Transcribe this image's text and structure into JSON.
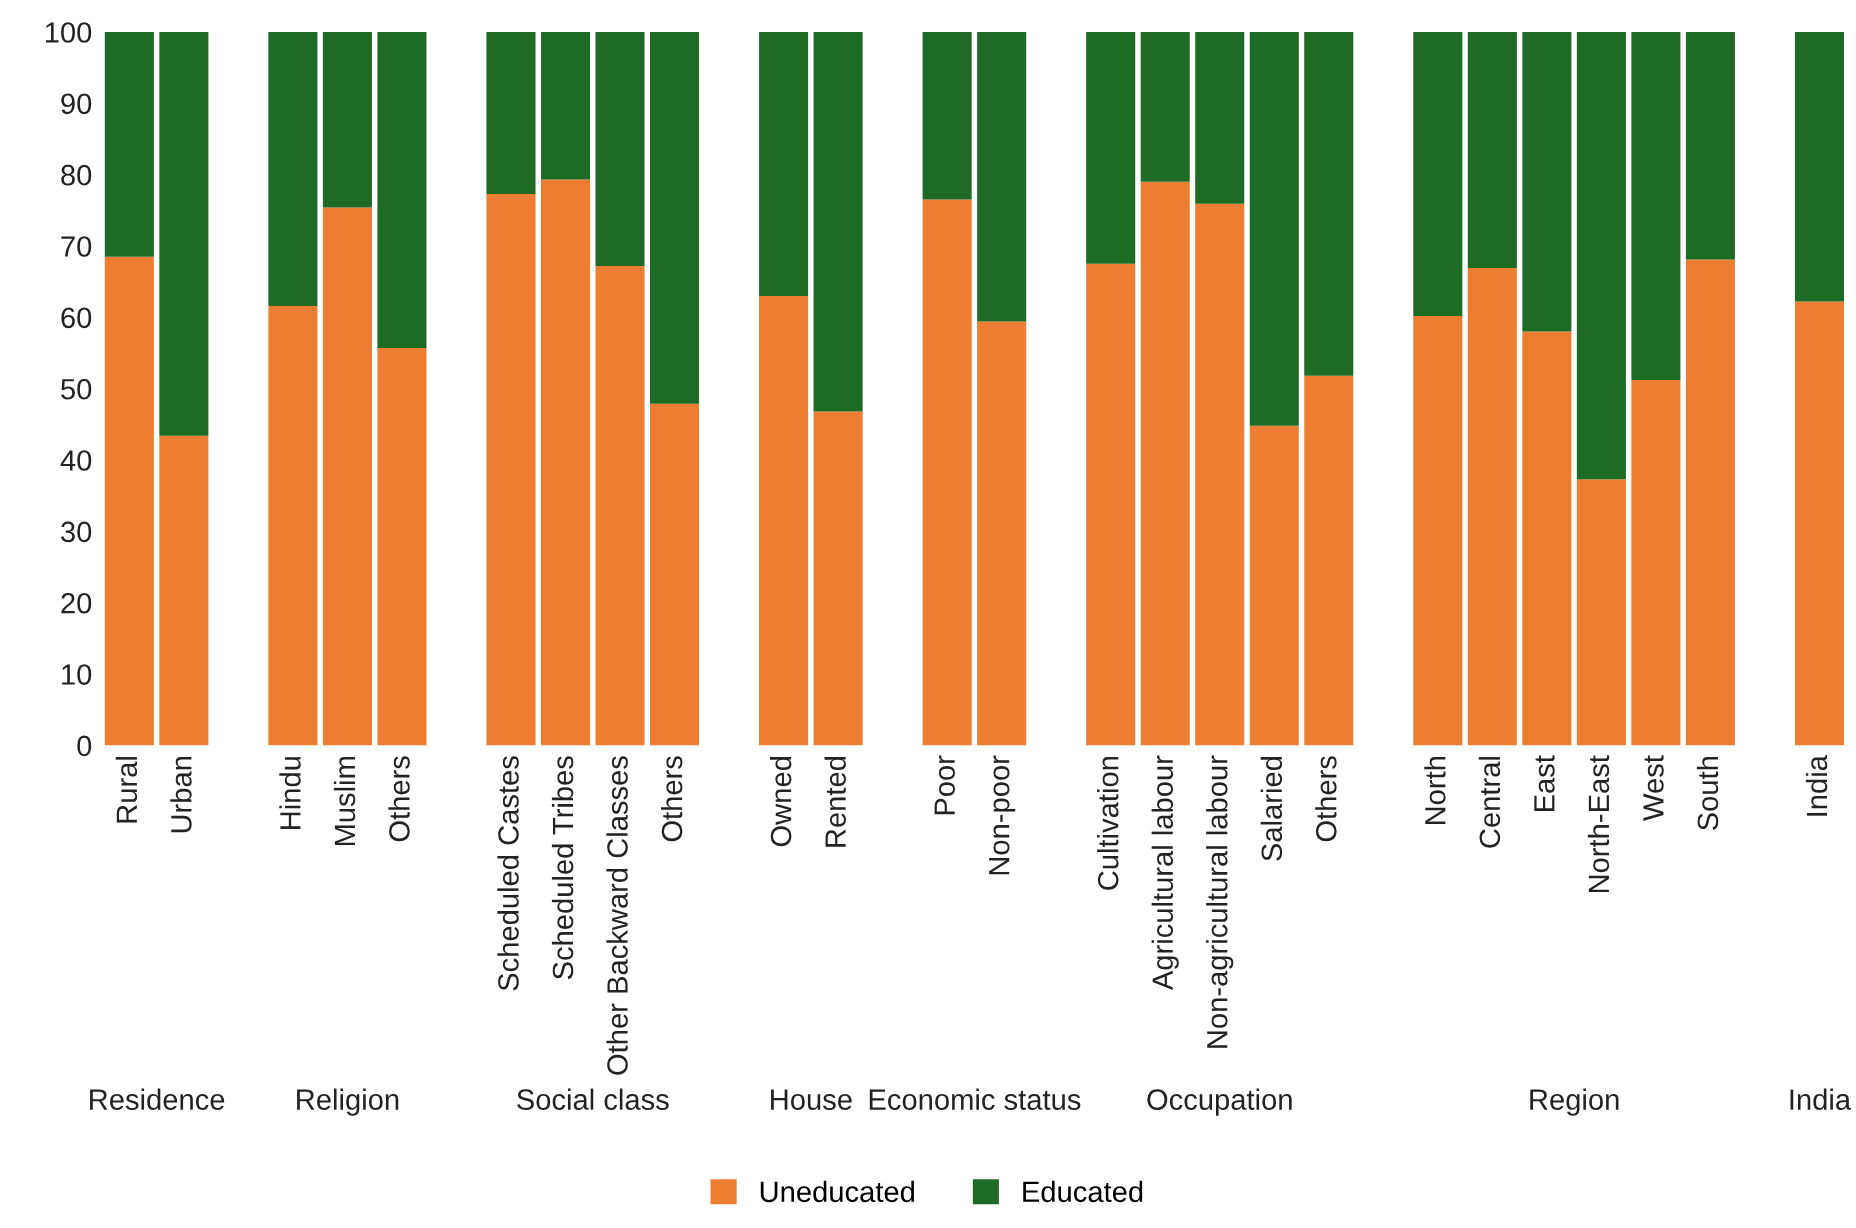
{
  "chart_data": {
    "type": "bar",
    "stacked": true,
    "categories": [
      "Rural",
      "Urban",
      null,
      "Hindu",
      "Muslim",
      "Others",
      null,
      "Scheduled Castes",
      "Scheduled Tribes",
      "Other Backward Classes",
      "Others",
      null,
      "Owned",
      "Rented",
      null,
      "Poor",
      "Non-poor",
      null,
      "Cultivation",
      "Agricultural labour",
      "Non-agricultural labour",
      "Salaried",
      "Others",
      null,
      "North",
      "Central",
      "East",
      "North-East",
      "West",
      "South",
      null,
      "India"
    ],
    "series": [
      {
        "name": "Uneducated",
        "color": "#ed7d31",
        "values": [
          68.5,
          43.4,
          null,
          61.6,
          75.4,
          55.7,
          null,
          77.3,
          79.3,
          67.2,
          47.9,
          null,
          63.0,
          46.8,
          null,
          76.5,
          59.4,
          null,
          67.5,
          79.0,
          75.9,
          44.8,
          51.8,
          null,
          60.2,
          66.9,
          58.0,
          37.3,
          51.2,
          68.1,
          null,
          62.2
        ]
      },
      {
        "name": "Educated",
        "color": "#1e6b25",
        "values": [
          31.5,
          56.6,
          null,
          38.4,
          24.6,
          44.3,
          null,
          22.7,
          20.7,
          32.8,
          52.1,
          null,
          37.0,
          53.2,
          null,
          23.5,
          40.6,
          null,
          32.5,
          21.0,
          24.1,
          55.2,
          48.2,
          null,
          39.8,
          33.1,
          42.0,
          62.7,
          48.8,
          31.9,
          null,
          37.8
        ]
      }
    ],
    "ylim": [
      0,
      100
    ],
    "yticks": [
      0,
      10,
      20,
      30,
      40,
      50,
      60,
      70,
      80,
      90,
      100
    ],
    "grid": false,
    "legend": "bottom",
    "annotations": [
      "Residence",
      "Religion",
      "Social class",
      "House",
      "Economic status",
      "Occupation",
      "Region",
      "India"
    ]
  }
}
